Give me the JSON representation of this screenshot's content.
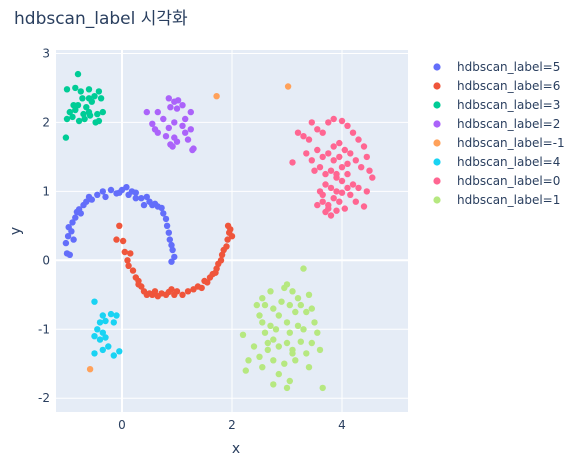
{
  "chart_data": {
    "type": "scatter",
    "title": "hdbscan_label 시각화",
    "xlabel": "x",
    "ylabel": "y",
    "xlim": [
      -1.2,
      5.2
    ],
    "ylim": [
      -2.2,
      3.05
    ],
    "xticks": [
      0,
      2,
      4
    ],
    "yticks": [
      -2,
      -1,
      0,
      1,
      2,
      3
    ],
    "grid": true,
    "legend_position": "right",
    "colors": {
      "plot_bg": "#E5ECF6",
      "grid": "#FFFFFF",
      "text": "#2a3f5f"
    },
    "series": [
      {
        "name": "hdbscan_label=5",
        "color": "#636EFA",
        "points": [
          [
            -1.0,
            0.1
          ],
          [
            -0.95,
            0.08
          ],
          [
            -1.02,
            0.25
          ],
          [
            -0.98,
            0.35
          ],
          [
            -0.92,
            0.42
          ],
          [
            -0.97,
            0.48
          ],
          [
            -0.88,
            0.3
          ],
          [
            -0.9,
            0.55
          ],
          [
            -0.85,
            0.62
          ],
          [
            -0.82,
            0.7
          ],
          [
            -0.78,
            0.74
          ],
          [
            -0.75,
            0.68
          ],
          [
            -0.7,
            0.8
          ],
          [
            -0.65,
            0.85
          ],
          [
            -0.6,
            0.92
          ],
          [
            -0.55,
            0.88
          ],
          [
            -0.45,
            0.95
          ],
          [
            -0.35,
            1.0
          ],
          [
            -0.3,
            0.92
          ],
          [
            -0.2,
            1.02
          ],
          [
            -0.1,
            0.97
          ],
          [
            -0.05,
            0.98
          ],
          [
            0.0,
            1.02
          ],
          [
            0.08,
            1.06
          ],
          [
            0.12,
            0.95
          ],
          [
            0.18,
            1.0
          ],
          [
            0.25,
            0.98
          ],
          [
            0.35,
            0.9
          ],
          [
            0.4,
            0.8
          ],
          [
            0.45,
            0.92
          ],
          [
            0.5,
            0.85
          ],
          [
            0.55,
            0.8
          ],
          [
            0.6,
            0.82
          ],
          [
            0.65,
            0.78
          ],
          [
            0.72,
            0.76
          ],
          [
            0.75,
            0.68
          ],
          [
            0.8,
            0.6
          ],
          [
            0.82,
            0.5
          ],
          [
            0.85,
            0.4
          ],
          [
            0.87,
            0.3
          ],
          [
            0.9,
            0.22
          ],
          [
            0.92,
            0.15
          ],
          [
            0.95,
            0.05
          ],
          [
            0.9,
            -0.02
          ],
          [
            0.25,
            0.9
          ]
        ]
      },
      {
        "name": "hdbscan_label=6",
        "color": "#EF553B",
        "points": [
          [
            -0.05,
            0.5
          ],
          [
            -0.1,
            0.3
          ],
          [
            0.02,
            0.28
          ],
          [
            0.05,
            0.12
          ],
          [
            0.1,
            0.0
          ],
          [
            0.12,
            -0.08
          ],
          [
            0.15,
            0.1
          ],
          [
            0.2,
            -0.15
          ],
          [
            0.25,
            -0.25
          ],
          [
            0.3,
            -0.3
          ],
          [
            0.35,
            -0.38
          ],
          [
            0.4,
            -0.45
          ],
          [
            0.45,
            -0.5
          ],
          [
            0.5,
            -0.48
          ],
          [
            0.55,
            -0.5
          ],
          [
            0.6,
            -0.45
          ],
          [
            0.65,
            -0.52
          ],
          [
            0.72,
            -0.48
          ],
          [
            0.8,
            -0.5
          ],
          [
            0.85,
            -0.46
          ],
          [
            0.9,
            -0.42
          ],
          [
            0.95,
            -0.5
          ],
          [
            1.0,
            -0.45
          ],
          [
            1.1,
            -0.5
          ],
          [
            1.2,
            -0.45
          ],
          [
            1.3,
            -0.42
          ],
          [
            1.38,
            -0.38
          ],
          [
            1.45,
            -0.4
          ],
          [
            1.5,
            -0.3
          ],
          [
            1.55,
            -0.32
          ],
          [
            1.6,
            -0.25
          ],
          [
            1.65,
            -0.2
          ],
          [
            1.7,
            -0.18
          ],
          [
            1.75,
            -0.05
          ],
          [
            1.8,
            0.0
          ],
          [
            1.82,
            0.08
          ],
          [
            1.85,
            0.15
          ],
          [
            1.9,
            0.2
          ],
          [
            1.92,
            0.3
          ],
          [
            1.95,
            0.4
          ],
          [
            1.97,
            0.45
          ],
          [
            1.93,
            0.5
          ],
          [
            2.0,
            0.35
          ],
          [
            0.3,
            -0.35
          ],
          [
            1.72,
            -0.12
          ]
        ]
      },
      {
        "name": "hdbscan_label=3",
        "color": "#00CC96",
        "points": [
          [
            -0.8,
            2.7
          ],
          [
            -1.0,
            2.48
          ],
          [
            -0.85,
            2.5
          ],
          [
            -0.75,
            2.45
          ],
          [
            -0.6,
            2.48
          ],
          [
            -0.42,
            2.45
          ],
          [
            -0.72,
            2.35
          ],
          [
            -0.6,
            2.35
          ],
          [
            -0.5,
            2.38
          ],
          [
            -0.38,
            2.35
          ],
          [
            -0.8,
            2.25
          ],
          [
            -0.65,
            2.22
          ],
          [
            -0.55,
            2.3
          ],
          [
            -0.95,
            2.15
          ],
          [
            -0.85,
            2.18
          ],
          [
            -0.7,
            2.12
          ],
          [
            -0.6,
            2.15
          ],
          [
            -0.45,
            2.12
          ],
          [
            -0.35,
            2.15
          ],
          [
            -1.0,
            2.05
          ],
          [
            -0.9,
            2.08
          ],
          [
            -0.78,
            2.02
          ],
          [
            -0.68,
            2.05
          ],
          [
            -0.58,
            2.1
          ],
          [
            -0.48,
            2.0
          ],
          [
            -0.42,
            2.02
          ],
          [
            -1.02,
            1.78
          ],
          [
            -0.88,
            2.25
          ]
        ]
      },
      {
        "name": "hdbscan_label=2",
        "color": "#AB63FA",
        "points": [
          [
            0.45,
            2.15
          ],
          [
            0.65,
            2.15
          ],
          [
            0.85,
            2.35
          ],
          [
            0.95,
            2.3
          ],
          [
            1.02,
            2.32
          ],
          [
            0.88,
            2.22
          ],
          [
            1.0,
            2.2
          ],
          [
            1.1,
            2.25
          ],
          [
            1.25,
            2.15
          ],
          [
            1.15,
            2.05
          ],
          [
            0.75,
            2.05
          ],
          [
            0.95,
            2.0
          ],
          [
            0.55,
            1.98
          ],
          [
            0.6,
            1.9
          ],
          [
            0.85,
            1.92
          ],
          [
            1.1,
            1.95
          ],
          [
            1.25,
            1.9
          ],
          [
            0.65,
            1.85
          ],
          [
            0.8,
            1.8
          ],
          [
            0.95,
            1.78
          ],
          [
            1.15,
            1.85
          ],
          [
            1.2,
            1.75
          ],
          [
            0.88,
            1.68
          ],
          [
            1.0,
            1.72
          ],
          [
            0.92,
            1.65
          ],
          [
            1.28,
            1.6
          ],
          [
            1.3,
            1.62
          ]
        ]
      },
      {
        "name": "hdbscan_label=-1",
        "color": "#FFA15A",
        "points": [
          [
            1.72,
            2.38
          ],
          [
            3.02,
            2.52
          ],
          [
            -0.58,
            -1.58
          ]
        ]
      },
      {
        "name": "hdbscan_label=4",
        "color": "#19D3F3",
        "points": [
          [
            -0.5,
            -0.6
          ],
          [
            -0.35,
            -0.8
          ],
          [
            -0.2,
            -0.78
          ],
          [
            -0.1,
            -0.8
          ],
          [
            -0.4,
            -0.9
          ],
          [
            -0.3,
            -0.88
          ],
          [
            -0.15,
            -0.9
          ],
          [
            -0.45,
            -1.0
          ],
          [
            -0.35,
            -1.05
          ],
          [
            -0.5,
            -1.1
          ],
          [
            -0.3,
            -1.12
          ],
          [
            -0.4,
            -1.15
          ],
          [
            -0.25,
            -1.25
          ],
          [
            -0.35,
            -1.3
          ],
          [
            -0.5,
            -1.35
          ],
          [
            -0.15,
            -1.38
          ],
          [
            -0.05,
            -1.32
          ]
        ]
      },
      {
        "name": "hdbscan_label=0",
        "color": "#FF6692",
        "points": [
          [
            3.1,
            1.42
          ],
          [
            3.2,
            1.85
          ],
          [
            3.3,
            1.8
          ],
          [
            3.4,
            1.75
          ],
          [
            3.45,
            2.0
          ],
          [
            3.55,
            1.9
          ],
          [
            3.65,
            1.85
          ],
          [
            3.75,
            2.0
          ],
          [
            3.85,
            2.05
          ],
          [
            4.0,
            2.02
          ],
          [
            4.1,
            1.95
          ],
          [
            4.2,
            1.85
          ],
          [
            4.3,
            1.75
          ],
          [
            4.4,
            1.65
          ],
          [
            4.45,
            1.5
          ],
          [
            4.5,
            1.3
          ],
          [
            4.55,
            1.2
          ],
          [
            3.35,
            1.55
          ],
          [
            3.45,
            1.45
          ],
          [
            3.55,
            1.6
          ],
          [
            3.65,
            1.5
          ],
          [
            3.75,
            1.55
          ],
          [
            3.85,
            1.65
          ],
          [
            3.95,
            1.7
          ],
          [
            4.05,
            1.6
          ],
          [
            4.15,
            1.55
          ],
          [
            4.25,
            1.45
          ],
          [
            4.35,
            1.35
          ],
          [
            3.5,
            1.3
          ],
          [
            3.6,
            1.35
          ],
          [
            3.7,
            1.25
          ],
          [
            3.8,
            1.3
          ],
          [
            3.9,
            1.2
          ],
          [
            4.0,
            1.15
          ],
          [
            4.1,
            1.25
          ],
          [
            4.2,
            1.1
          ],
          [
            4.3,
            1.05
          ],
          [
            3.6,
            1.0
          ],
          [
            3.7,
            1.1
          ],
          [
            3.8,
            1.05
          ],
          [
            3.9,
            1.0
          ],
          [
            4.0,
            0.98
          ],
          [
            4.1,
            1.05
          ],
          [
            3.55,
            0.8
          ],
          [
            3.65,
            0.85
          ],
          [
            3.75,
            0.8
          ],
          [
            3.85,
            0.9
          ],
          [
            3.95,
            0.85
          ],
          [
            4.05,
            0.75
          ],
          [
            4.15,
            0.95
          ],
          [
            4.25,
            0.85
          ],
          [
            4.45,
            1.0
          ],
          [
            3.65,
            0.95
          ],
          [
            3.75,
            0.75
          ],
          [
            3.8,
            0.65
          ],
          [
            3.9,
            0.72
          ],
          [
            4.4,
            0.78
          ],
          [
            3.7,
            0.7
          ],
          [
            4.1,
            1.4
          ],
          [
            3.85,
            1.45
          ],
          [
            3.95,
            1.5
          ],
          [
            4.0,
            1.35
          ],
          [
            3.9,
            1.25
          ]
        ]
      },
      {
        "name": "hdbscan_label=1",
        "color": "#B6E880",
        "points": [
          [
            2.95,
            -0.4
          ],
          [
            3.0,
            -0.35
          ],
          [
            3.3,
            -0.12
          ],
          [
            2.7,
            -0.45
          ],
          [
            2.9,
            -0.6
          ],
          [
            2.55,
            -0.55
          ],
          [
            3.1,
            -0.45
          ],
          [
            3.4,
            -0.5
          ],
          [
            3.2,
            -0.55
          ],
          [
            2.6,
            -0.65
          ],
          [
            2.75,
            -0.7
          ],
          [
            2.45,
            -0.65
          ],
          [
            3.05,
            -0.65
          ],
          [
            3.25,
            -0.65
          ],
          [
            3.45,
            -0.7
          ],
          [
            2.5,
            -0.8
          ],
          [
            2.85,
            -0.8
          ],
          [
            3.15,
            -0.75
          ],
          [
            3.35,
            -0.75
          ],
          [
            2.55,
            -0.9
          ],
          [
            2.7,
            -0.95
          ],
          [
            3.0,
            -0.9
          ],
          [
            3.2,
            -0.95
          ],
          [
            3.5,
            -0.9
          ],
          [
            2.6,
            -1.05
          ],
          [
            2.8,
            -1.0
          ],
          [
            3.05,
            -1.05
          ],
          [
            3.3,
            -1.0
          ],
          [
            3.55,
            -1.05
          ],
          [
            2.2,
            -1.08
          ],
          [
            2.75,
            -1.15
          ],
          [
            3.0,
            -1.2
          ],
          [
            3.25,
            -1.18
          ],
          [
            3.45,
            -1.2
          ],
          [
            2.4,
            -1.25
          ],
          [
            2.65,
            -1.3
          ],
          [
            2.85,
            -1.25
          ],
          [
            3.1,
            -1.3
          ],
          [
            3.35,
            -1.35
          ],
          [
            3.6,
            -1.3
          ],
          [
            2.3,
            -1.45
          ],
          [
            2.5,
            -1.4
          ],
          [
            2.75,
            -1.45
          ],
          [
            2.95,
            -1.5
          ],
          [
            3.15,
            -1.45
          ],
          [
            2.25,
            -1.6
          ],
          [
            2.55,
            -1.55
          ],
          [
            2.85,
            -1.65
          ],
          [
            3.05,
            -1.75
          ],
          [
            3.4,
            -1.55
          ],
          [
            2.75,
            -1.8
          ],
          [
            3.0,
            -1.85
          ],
          [
            3.65,
            -1.85
          ],
          [
            3.1,
            -1.35
          ],
          [
            2.65,
            -1.2
          ]
        ]
      }
    ]
  }
}
